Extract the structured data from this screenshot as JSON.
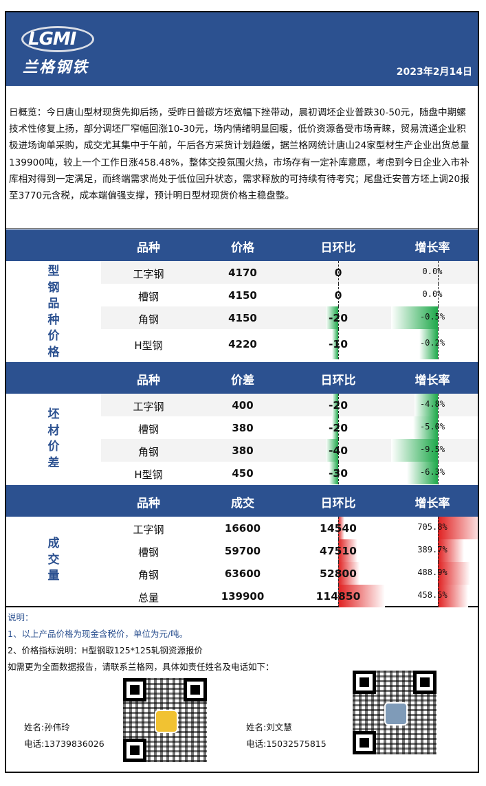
{
  "brand": {
    "logo_text": "LGMI",
    "logo_cn": "兰格钢铁"
  },
  "date": "2023年2月14日",
  "overview": "日概览：今日唐山型材现货先抑后扬，受昨日普碳方坯宽幅下挫带动，晨初调坯企业普跌30-50元，随盘中期螺技术性修复上扬，部分调坯厂窄幅回涨10-30元，场内情绪明显回暖，低价资源备受市场青睐，贸易流通企业积极进场询单采购，成交尤其集中于午前，午后各方采货计划趋缓，据兰格网统计唐山24家型材生产企业出货总量139900吨，较上一个工作日涨458.48%，整体交投氛围火热，市场存有一定补库意愿，考虑到今日企业入市补库相对得到一定满足，而终端需求尚处于低位回升状态，需求释放的可持续有待考究；尾盘迁安普方坯上调20报至3770元含税，成本端偏强支撑，预计明日型材现货价格主稳盘整。",
  "colors": {
    "header": "#2c5190",
    "up": "#e02020",
    "down": "#1ea84a"
  },
  "sections": [
    {
      "side_label": [
        "型",
        "钢",
        "品",
        "种",
        "价",
        "格"
      ],
      "headers": [
        "品种",
        "价格",
        "日环比",
        "增长率"
      ],
      "rows": [
        {
          "name": "工字钢",
          "value": "4170",
          "change": "0",
          "growth": "0.0%",
          "change_num": 0,
          "growth_num": 0.0
        },
        {
          "name": "槽钢",
          "value": "4150",
          "change": "0",
          "growth": "0.0%",
          "change_num": 0,
          "growth_num": 0.0
        },
        {
          "name": "角钢",
          "value": "4150",
          "change": "-20",
          "growth": "-0.5%",
          "change_num": -20,
          "growth_num": -0.5
        },
        {
          "name": "H型钢",
          "value": "4220",
          "change": "-10",
          "growth": "-0.2%",
          "change_num": -10,
          "growth_num": -0.2
        }
      ]
    },
    {
      "side_label": [
        "坯",
        "材",
        "价",
        "差"
      ],
      "headers": [
        "品种",
        "价差",
        "日环比",
        "增长率"
      ],
      "rows": [
        {
          "name": "工字钢",
          "value": "400",
          "change": "-20",
          "growth": "-4.8%",
          "change_num": -20,
          "growth_num": -4.8
        },
        {
          "name": "槽钢",
          "value": "380",
          "change": "-20",
          "growth": "-5.0%",
          "change_num": -20,
          "growth_num": -5.0
        },
        {
          "name": "角钢",
          "value": "380",
          "change": "-40",
          "growth": "-9.5%",
          "change_num": -40,
          "growth_num": -9.5
        },
        {
          "name": "H型钢",
          "value": "450",
          "change": "-30",
          "growth": "-6.3%",
          "change_num": -30,
          "growth_num": -6.3
        }
      ]
    },
    {
      "side_label": [
        "成",
        "交",
        "量"
      ],
      "headers": [
        "品种",
        "成交",
        "日环比",
        "增长率"
      ],
      "rows": [
        {
          "name": "工字钢",
          "value": "16600",
          "change": "14540",
          "growth": "705.8%",
          "change_num": 14540,
          "growth_num": 705.8
        },
        {
          "name": "槽钢",
          "value": "59700",
          "change": "47510",
          "growth": "389.7%",
          "change_num": 47510,
          "growth_num": 389.7
        },
        {
          "name": "角钢",
          "value": "63600",
          "change": "52800",
          "growth": "488.9%",
          "change_num": 52800,
          "growth_num": 488.9
        },
        {
          "name": "总量",
          "value": "139900",
          "change": "114850",
          "growth": "458.5%",
          "change_num": 114850,
          "growth_num": 458.5
        }
      ]
    }
  ],
  "notes": {
    "title": "说明：",
    "line1": "1、以上产品价格为现金含税价，单位为元/吨。",
    "line2": "2、价格指标说明：H型钢取125*125轧钢资源报价",
    "line3": "如需更为全面数据报告，请联系兰格网，具体如责任姓名及电话如下："
  },
  "contacts": [
    {
      "name": "姓名:孙伟玲",
      "phone": "电话:13739836026"
    },
    {
      "name": "姓名:刘文慧",
      "phone": "电话:15032575815"
    }
  ]
}
